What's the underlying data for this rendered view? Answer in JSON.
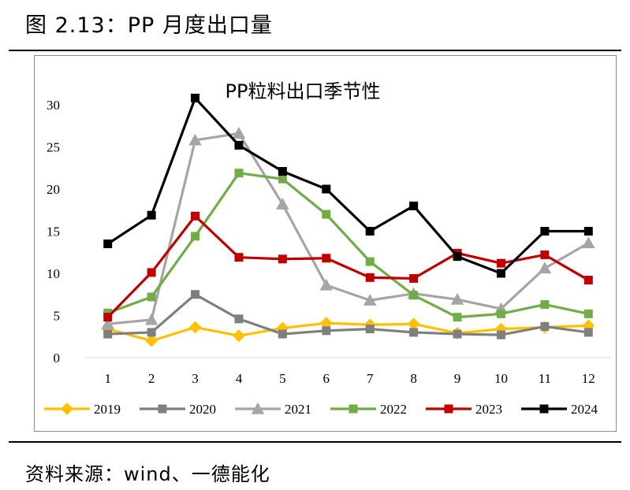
{
  "figure_title": "图 2.13：PP 月度出口量",
  "source": "资料来源：wind、一德能化",
  "chart_data": {
    "type": "line",
    "title": "PP粒料出口季节性",
    "xlabel": "",
    "ylabel": "",
    "categories": [
      "1",
      "2",
      "3",
      "4",
      "5",
      "6",
      "7",
      "8",
      "9",
      "10",
      "11",
      "12"
    ],
    "ylim": [
      0,
      30
    ],
    "yticks": [
      "0",
      "5",
      "10",
      "15",
      "20",
      "25",
      "30"
    ],
    "grid": false,
    "legend_position": "bottom",
    "series": [
      {
        "name": "2019",
        "color": "#FFC000",
        "marker": "diamond",
        "values": [
          3.4,
          2.0,
          3.6,
          2.6,
          3.5,
          4.1,
          3.9,
          4.0,
          2.9,
          3.4,
          3.6,
          3.8
        ]
      },
      {
        "name": "2020",
        "color": "#7F7F7F",
        "marker": "square",
        "values": [
          2.8,
          3.0,
          7.5,
          4.6,
          2.8,
          3.2,
          3.4,
          3.0,
          2.8,
          2.7,
          3.7,
          3.0
        ]
      },
      {
        "name": "2021",
        "color": "#A5A5A5",
        "marker": "triangle",
        "values": [
          4.0,
          4.5,
          25.8,
          26.6,
          18.2,
          8.6,
          6.8,
          7.6,
          6.9,
          5.8,
          10.6,
          13.6
        ]
      },
      {
        "name": "2022",
        "color": "#70AD47",
        "marker": "square",
        "values": [
          5.3,
          7.2,
          14.4,
          21.9,
          21.2,
          17.0,
          11.4,
          7.4,
          4.8,
          5.2,
          6.3,
          5.2
        ]
      },
      {
        "name": "2023",
        "color": "#C00000",
        "marker": "square",
        "values": [
          4.8,
          10.1,
          16.8,
          11.9,
          11.7,
          11.8,
          9.5,
          9.4,
          12.4,
          11.2,
          12.2,
          9.2
        ]
      },
      {
        "name": "2024",
        "color": "#000000",
        "marker": "square",
        "values": [
          13.5,
          16.9,
          30.8,
          25.2,
          22.1,
          20.0,
          15.0,
          18.0,
          12.0,
          10.0,
          15.0,
          15.0
        ]
      }
    ]
  }
}
